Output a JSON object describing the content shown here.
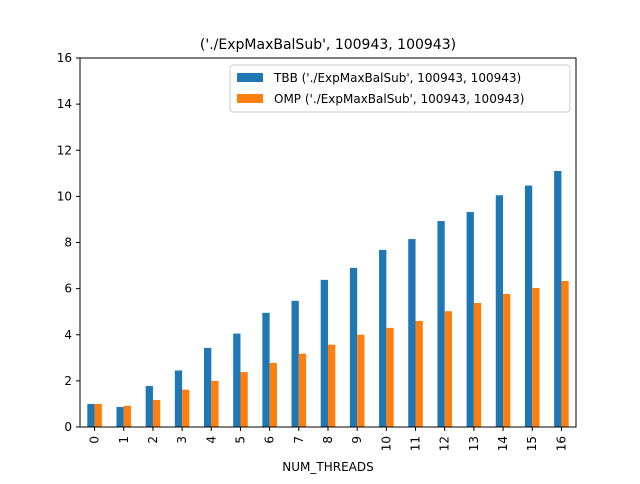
{
  "chart_data": {
    "type": "bar",
    "title": "('./ExpMaxBalSub', 100943, 100943)",
    "xlabel": "NUM_THREADS",
    "ylabel": "",
    "ylim": [
      0,
      16
    ],
    "yticks": [
      0,
      2,
      4,
      6,
      8,
      10,
      12,
      14,
      16
    ],
    "categories": [
      "0",
      "1",
      "2",
      "3",
      "4",
      "5",
      "6",
      "7",
      "8",
      "9",
      "10",
      "11",
      "12",
      "13",
      "14",
      "15",
      "16"
    ],
    "grid": false,
    "legend_position": "top-right",
    "series": [
      {
        "name": "TBB ('./ExpMaxBalSub', 100943, 100943)",
        "color": "#1f77b4",
        "values": [
          1.0,
          0.87,
          1.78,
          2.45,
          3.43,
          4.05,
          4.95,
          5.47,
          6.38,
          6.9,
          7.68,
          8.15,
          8.93,
          9.32,
          10.05,
          10.47,
          11.1
        ]
      },
      {
        "name": "OMP ('./ExpMaxBalSub', 100943, 100943)",
        "color": "#ff7f0e",
        "values": [
          1.0,
          0.92,
          1.17,
          1.62,
          2.0,
          2.38,
          2.78,
          3.18,
          3.57,
          4.0,
          4.3,
          4.6,
          5.02,
          5.38,
          5.77,
          6.03,
          6.33
        ]
      }
    ]
  }
}
